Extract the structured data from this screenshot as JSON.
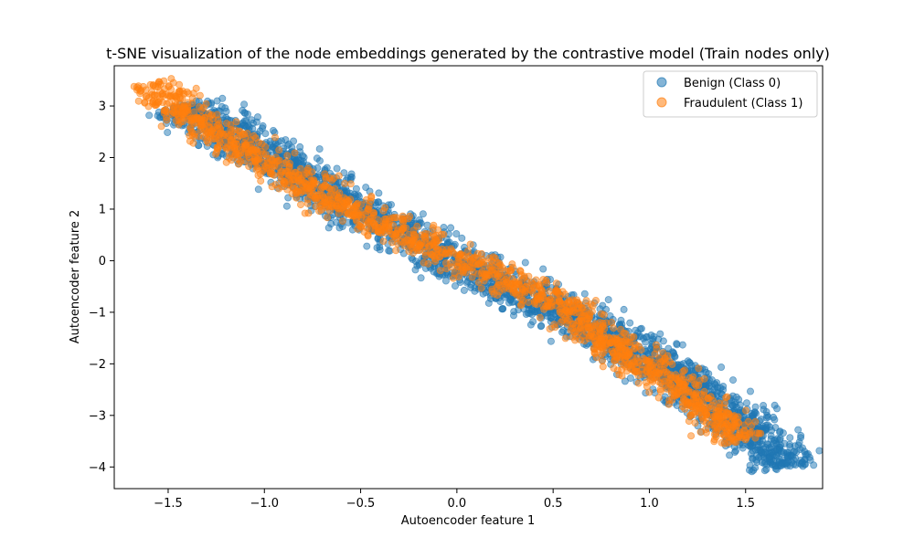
{
  "chart_data": {
    "type": "scatter",
    "title": "t-SNE visualization of the node embeddings generated by the contrastive model (Train nodes only)",
    "xlabel": "Autoencoder feature 1",
    "ylabel": "Autoencoder feature 2",
    "xlim": [
      -1.78,
      1.9
    ],
    "ylim": [
      -4.42,
      3.78
    ],
    "xticks": [
      -1.5,
      -1.0,
      -0.5,
      0.0,
      0.5,
      1.0,
      1.5
    ],
    "xtick_labels": [
      "−1.5",
      "−1.0",
      "−0.5",
      "0.0",
      "0.5",
      "1.0",
      "1.5"
    ],
    "yticks": [
      -4,
      -3,
      -2,
      -1,
      0,
      1,
      2,
      3
    ],
    "ytick_labels": [
      "−4",
      "−3",
      "−2",
      "−1",
      "0",
      "1",
      "2",
      "3"
    ],
    "grid": false,
    "legend_position": "top-right",
    "series": [
      {
        "name": "Benign (Class 0)",
        "color": "#1f77b4",
        "spine": [
          [
            -1.45,
            3.0
          ],
          [
            -1.0,
            2.1
          ],
          [
            -0.5,
            0.95
          ],
          [
            0.0,
            -0.05
          ],
          [
            0.5,
            -0.9
          ],
          [
            1.0,
            -1.9
          ],
          [
            1.5,
            -3.2
          ],
          [
            1.73,
            -4.02
          ]
        ],
        "spread": 0.17
      },
      {
        "name": "Fraudulent (Class 1)",
        "color": "#ff7f0e",
        "spine": [
          [
            -1.6,
            3.45
          ],
          [
            -1.3,
            2.55
          ],
          [
            -1.0,
            1.9
          ],
          [
            -0.5,
            0.9
          ],
          [
            -0.2,
            0.4
          ],
          [
            0.1,
            -0.1
          ],
          [
            0.5,
            -0.75
          ],
          [
            0.8,
            -1.6
          ],
          [
            1.1,
            -2.3
          ],
          [
            1.5,
            -3.5
          ]
        ],
        "spread": 0.13
      }
    ]
  }
}
